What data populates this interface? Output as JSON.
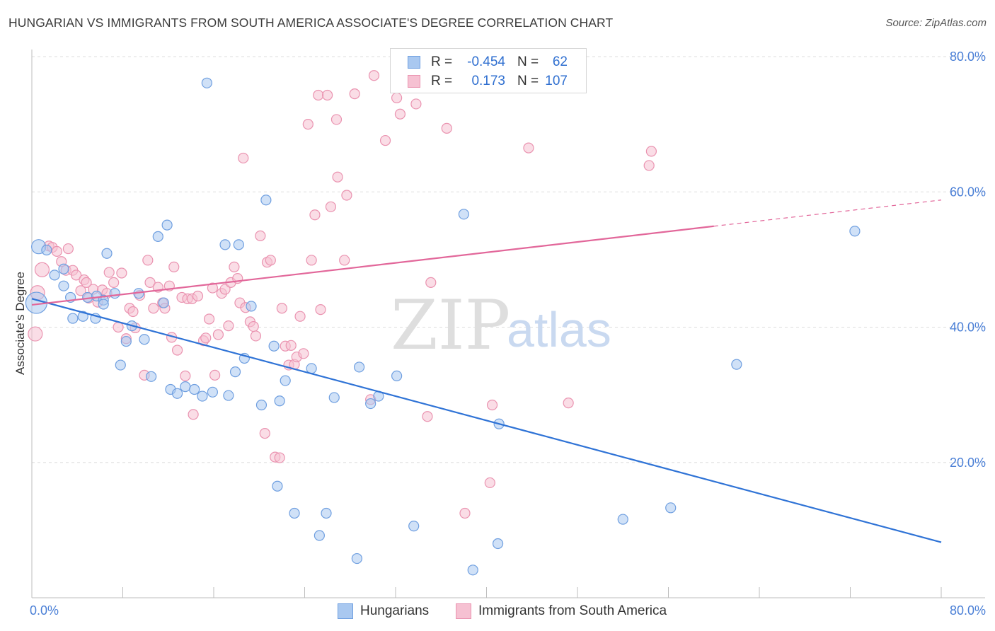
{
  "header": {
    "title": "HUNGARIAN VS IMMIGRANTS FROM SOUTH AMERICA ASSOCIATE'S DEGREE CORRELATION CHART",
    "source": "Source: ZipAtlas.com"
  },
  "watermark": {
    "zip": "ZIP",
    "atlas": "atlas"
  },
  "legend": {
    "rows": [
      {
        "r_label": "R =",
        "r_value": "-0.454",
        "n_label": "N =",
        "n_value": "62"
      },
      {
        "r_label": "R =",
        "r_value": "0.173",
        "n_label": "N =",
        "n_value": "107"
      }
    ]
  },
  "bottom_legend": {
    "series_a": "Hungarians",
    "series_b": "Immigrants from South America"
  },
  "colors": {
    "blue_fill": "#a9c8f0",
    "blue_stroke": "#6f9fe0",
    "blue_line": "#2f73d6",
    "pink_fill": "#f6c1d2",
    "pink_stroke": "#ea93b0",
    "pink_line": "#e2679a",
    "tick_text": "#4a7fd6",
    "grid": "#dddddd"
  },
  "chart_data": {
    "type": "scatter",
    "title": "HUNGARIAN VS IMMIGRANTS FROM SOUTH AMERICA ASSOCIATE'S DEGREE CORRELATION CHART",
    "xlabel": "",
    "ylabel": "Associate's Degree",
    "xlim": [
      0,
      80
    ],
    "ylim": [
      0,
      80
    ],
    "x_tick_labels": [
      "0.0%",
      "80.0%"
    ],
    "y_ticks": [
      20,
      40,
      60,
      80
    ],
    "y_tick_labels": [
      "20.0%",
      "40.0%",
      "60.0%",
      "80.0%"
    ],
    "series": [
      {
        "name": "Hungarians",
        "R": -0.454,
        "N": 62,
        "trend": {
          "x0": 0,
          "y0": 44.2,
          "x1": 80,
          "y1": 8.2,
          "solid_until": 80
        },
        "points": [
          [
            0.6,
            51.9,
            1
          ],
          [
            1.3,
            51.4,
            0.7
          ],
          [
            2.0,
            47.7,
            0.7
          ],
          [
            2.8,
            48.6,
            0.7
          ],
          [
            2.8,
            46.1,
            0.7
          ],
          [
            3.4,
            44.4,
            0.7
          ],
          [
            3.6,
            41.3,
            0.7
          ],
          [
            4.5,
            41.6,
            0.7
          ],
          [
            4.9,
            44.4,
            0.7
          ],
          [
            5.6,
            41.3,
            0.7
          ],
          [
            5.7,
            44.6,
            0.7
          ],
          [
            6.3,
            44.0,
            0.7
          ],
          [
            6.3,
            43.4,
            0.7
          ],
          [
            6.6,
            50.9,
            0.7
          ],
          [
            7.3,
            45.0,
            0.7
          ],
          [
            7.8,
            34.4,
            0.7
          ],
          [
            8.3,
            37.9,
            0.7
          ],
          [
            8.8,
            40.2,
            0.7
          ],
          [
            9.4,
            45.0,
            0.7
          ],
          [
            9.9,
            38.2,
            0.7
          ],
          [
            10.5,
            32.7,
            0.7
          ],
          [
            11.1,
            53.4,
            0.7
          ],
          [
            11.6,
            43.6,
            0.7
          ],
          [
            11.9,
            55.1,
            0.7
          ],
          [
            12.2,
            30.8,
            0.7
          ],
          [
            12.8,
            30.2,
            0.7
          ],
          [
            13.5,
            31.2,
            0.7
          ],
          [
            14.3,
            30.8,
            0.7
          ],
          [
            15.0,
            29.8,
            0.7
          ],
          [
            15.4,
            76.1,
            0.7
          ],
          [
            15.9,
            30.4,
            0.7
          ],
          [
            17.0,
            52.2,
            0.7
          ],
          [
            17.3,
            29.9,
            0.7
          ],
          [
            17.9,
            33.4,
            0.7
          ],
          [
            18.2,
            52.2,
            0.7
          ],
          [
            18.7,
            35.4,
            0.7
          ],
          [
            19.3,
            43.1,
            0.7
          ],
          [
            20.2,
            28.5,
            0.7
          ],
          [
            20.6,
            58.8,
            0.7
          ],
          [
            21.3,
            37.2,
            0.7
          ],
          [
            21.6,
            16.5,
            0.7
          ],
          [
            21.8,
            29.1,
            0.7
          ],
          [
            22.3,
            32.1,
            0.7
          ],
          [
            23.1,
            12.5,
            0.7
          ],
          [
            24.6,
            33.9,
            0.7
          ],
          [
            25.3,
            9.2,
            0.7
          ],
          [
            25.9,
            12.5,
            0.7
          ],
          [
            26.6,
            29.6,
            0.7
          ],
          [
            28.6,
            5.8,
            0.7
          ],
          [
            28.8,
            34.1,
            0.7
          ],
          [
            29.8,
            28.7,
            0.7
          ],
          [
            30.5,
            29.8,
            0.7
          ],
          [
            32.1,
            32.8,
            0.7
          ],
          [
            33.6,
            10.6,
            0.7
          ],
          [
            38.0,
            56.7,
            0.7
          ],
          [
            38.8,
            4.1,
            0.7
          ],
          [
            41.0,
            8.0,
            0.7
          ],
          [
            41.1,
            25.7,
            0.7
          ],
          [
            52.0,
            11.6,
            0.7
          ],
          [
            56.2,
            13.3,
            0.7
          ],
          [
            62.0,
            34.5,
            0.7
          ],
          [
            72.4,
            54.2,
            0.7
          ],
          [
            0.4,
            43.6,
            1.5
          ]
        ]
      },
      {
        "name": "Immigrants from South America",
        "R": 0.173,
        "N": 107,
        "trend": {
          "x0": 0,
          "y0": 43.3,
          "x1": 80,
          "y1": 58.8,
          "solid_until": 60
        },
        "points": [
          [
            0.3,
            39.0,
            1
          ],
          [
            0.5,
            45.1,
            1
          ],
          [
            0.9,
            48.5,
            1
          ],
          [
            1.5,
            52.0,
            0.7
          ],
          [
            1.8,
            51.8,
            0.7
          ],
          [
            2.2,
            51.2,
            0.7
          ],
          [
            2.6,
            49.7,
            0.7
          ],
          [
            3.0,
            48.4,
            0.7
          ],
          [
            3.2,
            51.6,
            0.7
          ],
          [
            3.6,
            48.4,
            0.7
          ],
          [
            3.9,
            47.7,
            0.7
          ],
          [
            4.3,
            45.4,
            0.7
          ],
          [
            4.6,
            47.0,
            0.7
          ],
          [
            4.8,
            46.6,
            0.7
          ],
          [
            5.0,
            44.3,
            0.7
          ],
          [
            5.4,
            45.6,
            0.7
          ],
          [
            5.8,
            43.7,
            0.7
          ],
          [
            6.2,
            45.5,
            0.7
          ],
          [
            6.6,
            45.0,
            0.7
          ],
          [
            6.8,
            48.1,
            0.7
          ],
          [
            7.2,
            46.6,
            0.7
          ],
          [
            7.6,
            40.0,
            0.7
          ],
          [
            7.9,
            48.0,
            0.7
          ],
          [
            8.3,
            38.3,
            0.7
          ],
          [
            8.6,
            42.8,
            0.7
          ],
          [
            8.9,
            42.3,
            0.7
          ],
          [
            9.1,
            39.9,
            0.7
          ],
          [
            9.5,
            44.7,
            0.7
          ],
          [
            9.9,
            32.9,
            0.7
          ],
          [
            10.2,
            49.9,
            0.7
          ],
          [
            10.4,
            46.6,
            0.7
          ],
          [
            10.7,
            42.8,
            0.7
          ],
          [
            11.1,
            45.9,
            0.7
          ],
          [
            11.5,
            43.6,
            0.7
          ],
          [
            11.7,
            42.8,
            0.7
          ],
          [
            12.1,
            46.1,
            0.7
          ],
          [
            12.3,
            38.5,
            0.7
          ],
          [
            12.5,
            48.9,
            0.7
          ],
          [
            12.8,
            36.6,
            0.7
          ],
          [
            13.2,
            44.4,
            0.7
          ],
          [
            13.5,
            32.8,
            0.7
          ],
          [
            13.7,
            44.2,
            0.7
          ],
          [
            14.1,
            44.2,
            0.7
          ],
          [
            14.2,
            27.1,
            0.7
          ],
          [
            14.6,
            44.6,
            0.7
          ],
          [
            15.1,
            38.0,
            0.7
          ],
          [
            15.3,
            38.4,
            0.7
          ],
          [
            15.6,
            41.2,
            0.7
          ],
          [
            15.9,
            45.8,
            0.7
          ],
          [
            16.1,
            32.9,
            0.7
          ],
          [
            16.4,
            38.9,
            0.7
          ],
          [
            16.7,
            45.0,
            0.7
          ],
          [
            17.0,
            45.6,
            0.7
          ],
          [
            17.3,
            40.2,
            0.7
          ],
          [
            17.5,
            46.6,
            0.7
          ],
          [
            17.8,
            48.9,
            0.7
          ],
          [
            18.1,
            47.2,
            0.7
          ],
          [
            18.3,
            43.6,
            0.7
          ],
          [
            18.6,
            65.0,
            0.7
          ],
          [
            18.8,
            42.9,
            0.7
          ],
          [
            19.2,
            40.8,
            0.7
          ],
          [
            19.5,
            40.1,
            0.7
          ],
          [
            19.7,
            38.7,
            0.7
          ],
          [
            20.1,
            53.5,
            0.7
          ],
          [
            20.5,
            24.3,
            0.7
          ],
          [
            20.7,
            49.6,
            0.7
          ],
          [
            21.0,
            49.9,
            0.7
          ],
          [
            21.4,
            20.8,
            0.7
          ],
          [
            21.8,
            20.7,
            0.7
          ],
          [
            22.0,
            42.8,
            0.7
          ],
          [
            22.3,
            37.2,
            0.7
          ],
          [
            22.6,
            34.4,
            0.7
          ],
          [
            22.8,
            37.3,
            0.7
          ],
          [
            23.1,
            34.5,
            0.7
          ],
          [
            23.3,
            35.6,
            0.7
          ],
          [
            23.6,
            41.6,
            0.7
          ],
          [
            23.9,
            36.1,
            0.7
          ],
          [
            24.3,
            70.0,
            0.7
          ],
          [
            24.6,
            49.9,
            0.7
          ],
          [
            24.9,
            56.6,
            0.7
          ],
          [
            25.2,
            74.3,
            0.7
          ],
          [
            25.4,
            42.6,
            0.7
          ],
          [
            26.0,
            74.3,
            0.7
          ],
          [
            26.3,
            57.8,
            0.7
          ],
          [
            26.8,
            70.7,
            0.7
          ],
          [
            26.9,
            62.2,
            0.7
          ],
          [
            27.5,
            49.9,
            0.7
          ],
          [
            27.7,
            59.5,
            0.7
          ],
          [
            28.4,
            74.5,
            0.7
          ],
          [
            29.8,
            29.3,
            0.7
          ],
          [
            30.1,
            77.2,
            0.7
          ],
          [
            31.1,
            67.6,
            0.7
          ],
          [
            32.1,
            73.9,
            0.7
          ],
          [
            32.4,
            71.5,
            0.7
          ],
          [
            33.8,
            73.0,
            0.7
          ],
          [
            34.8,
            26.8,
            0.7
          ],
          [
            35.1,
            46.6,
            0.7
          ],
          [
            36.5,
            69.4,
            0.7
          ],
          [
            38.1,
            12.5,
            0.7
          ],
          [
            40.3,
            17.0,
            0.7
          ],
          [
            40.5,
            28.5,
            0.7
          ],
          [
            43.7,
            66.5,
            0.7
          ],
          [
            47.2,
            28.8,
            0.7
          ],
          [
            54.3,
            63.9,
            0.7
          ],
          [
            54.5,
            66.0,
            0.7
          ]
        ]
      }
    ]
  }
}
